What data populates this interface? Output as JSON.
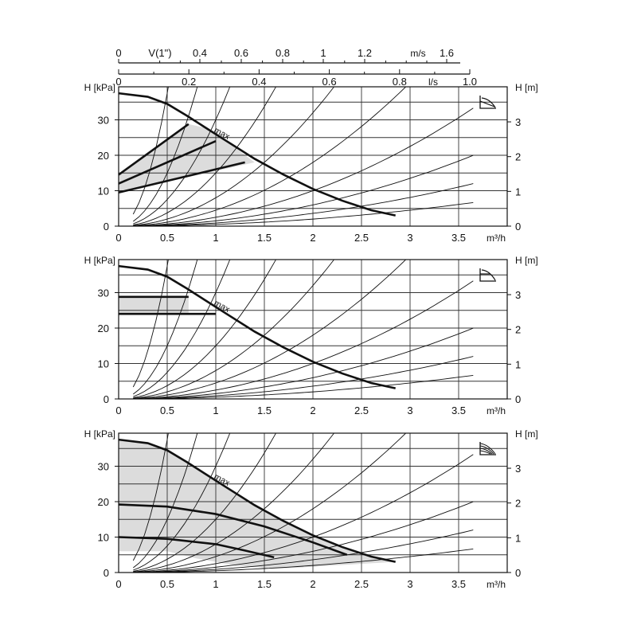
{
  "top_scales": {
    "velocity": {
      "label": "V(1\")",
      "unit": "m/s",
      "ticks": [
        {
          "label": "0",
          "v": 0
        },
        {
          "label": "0.4",
          "v": 0.4
        },
        {
          "label": "0.6",
          "v": 0.6
        },
        {
          "label": "0.8",
          "v": 0.8
        },
        {
          "label": "1",
          "v": 1.0
        },
        {
          "label": "1.2",
          "v": 1.2
        },
        {
          "label": "1.6",
          "v": 1.6
        }
      ]
    },
    "flow_ls": {
      "unit": "l/s",
      "ticks": [
        {
          "label": "0",
          "v": 0
        },
        {
          "label": "0.2",
          "v": 0.2
        },
        {
          "label": "0.4",
          "v": 0.4
        },
        {
          "label": "0.6",
          "v": 0.6
        },
        {
          "label": "0.8",
          "v": 0.8
        },
        {
          "label": "1.0",
          "v": 1.0
        }
      ]
    }
  },
  "chart_data": [
    {
      "type": "line",
      "mode": "proportional-pressure",
      "icon": "proportional-pressure-icon",
      "xlabel": "m³/h",
      "ylabel_left": "H [kPa]",
      "ylabel_right": "H [m]",
      "x_ticks": [
        "0",
        "0.5",
        "1",
        "1.5",
        "2",
        "2.5",
        "3",
        "3.5"
      ],
      "xlim": [
        0,
        3.6
      ],
      "ylim_kpa": [
        0,
        39
      ],
      "y_ticks_left": [
        "0",
        "10",
        "20",
        "30"
      ],
      "y_ticks_right": [
        "0",
        "1",
        "2",
        "3"
      ],
      "max_label": "max",
      "max_curve": [
        [
          0,
          37.5
        ],
        [
          0.3,
          36.5
        ],
        [
          0.5,
          34.5
        ],
        [
          0.7,
          31.2
        ],
        [
          0.9,
          27.7
        ],
        [
          1.1,
          24.2
        ],
        [
          1.4,
          19
        ],
        [
          1.7,
          14.5
        ],
        [
          2.0,
          10.5
        ],
        [
          2.3,
          7.2
        ],
        [
          2.6,
          4.5
        ],
        [
          2.85,
          3
        ]
      ],
      "control_lines": [
        {
          "values": [
            [
              0,
              14.5
            ],
            [
              0.72,
              28.8
            ]
          ]
        },
        {
          "values": [
            [
              0,
              12
            ],
            [
              1.0,
              24
            ]
          ]
        },
        {
          "values": [
            [
              0,
              9.5
            ],
            [
              1.3,
              18
            ]
          ]
        }
      ],
      "shaded_region": [
        [
          0,
          14.5
        ],
        [
          0.72,
          28.8
        ],
        [
          0.9,
          27.7
        ],
        [
          1.1,
          24.2
        ],
        [
          1.4,
          18
        ],
        [
          0,
          9.5
        ]
      ],
      "system_curve_coefficients": [
        150,
        60,
        30,
        15,
        8,
        4.5,
        2.5,
        1.5,
        0.9,
        0.5
      ]
    },
    {
      "type": "line",
      "mode": "constant-pressure",
      "icon": "constant-pressure-icon",
      "xlabel": "m³/h",
      "ylabel_left": "H [kPa]",
      "ylabel_right": "H [m]",
      "x_ticks": [
        "0",
        "0.5",
        "1",
        "1.5",
        "2",
        "2.5",
        "3",
        "3.5"
      ],
      "xlim": [
        0,
        3.6
      ],
      "ylim_kpa": [
        0,
        39
      ],
      "y_ticks_left": [
        "0",
        "10",
        "20",
        "30"
      ],
      "y_ticks_right": [
        "0",
        "1",
        "2",
        "3"
      ],
      "max_label": "max",
      "max_curve": [
        [
          0,
          37.5
        ],
        [
          0.3,
          36.5
        ],
        [
          0.5,
          34.5
        ],
        [
          0.7,
          31.2
        ],
        [
          0.9,
          27.7
        ],
        [
          1.1,
          24.2
        ],
        [
          1.4,
          19
        ],
        [
          1.7,
          14.5
        ],
        [
          2.0,
          10.5
        ],
        [
          2.3,
          7.2
        ],
        [
          2.6,
          4.5
        ],
        [
          2.85,
          3
        ]
      ],
      "control_lines": [
        {
          "values": [
            [
              0,
              28.8
            ],
            [
              0.72,
              28.8
            ]
          ]
        },
        {
          "values": [
            [
              0,
              24
            ],
            [
              1.0,
              24
            ]
          ]
        }
      ],
      "shaded_region": [
        [
          0,
          28.8
        ],
        [
          0.72,
          28.8
        ],
        [
          0.72,
          24
        ],
        [
          0,
          24
        ]
      ],
      "system_curve_coefficients": [
        150,
        60,
        30,
        15,
        8,
        4.5,
        2.5,
        1.5,
        0.9,
        0.5
      ]
    },
    {
      "type": "line",
      "mode": "constant-speed",
      "icon": "constant-speed-icon",
      "xlabel": "m³/h",
      "ylabel_left": "H [kPa]",
      "ylabel_right": "H [m]",
      "x_ticks": [
        "0",
        "0.5",
        "1",
        "1.5",
        "2",
        "2.5",
        "3",
        "3.5"
      ],
      "xlim": [
        0,
        3.6
      ],
      "ylim_kpa": [
        0,
        39
      ],
      "y_ticks_left": [
        "0",
        "10",
        "20",
        "30"
      ],
      "y_ticks_right": [
        "0",
        "1",
        "2",
        "3"
      ],
      "max_label": "max",
      "max_curve": [
        [
          0,
          37.5
        ],
        [
          0.3,
          36.5
        ],
        [
          0.5,
          34.5
        ],
        [
          0.7,
          31.2
        ],
        [
          0.9,
          27.7
        ],
        [
          1.1,
          24.2
        ],
        [
          1.4,
          19
        ],
        [
          1.7,
          14.5
        ],
        [
          2.0,
          10.5
        ],
        [
          2.3,
          7.2
        ],
        [
          2.6,
          4.5
        ],
        [
          2.85,
          3
        ]
      ],
      "control_lines": [
        {
          "values": [
            [
              0,
              19.2
            ],
            [
              0.5,
              18.6
            ],
            [
              1.0,
              16.5
            ],
            [
              1.5,
              13
            ],
            [
              2.0,
              8.5
            ],
            [
              2.35,
              5
            ]
          ]
        },
        {
          "values": [
            [
              0,
              10
            ],
            [
              0.5,
              9.5
            ],
            [
              1.0,
              8
            ],
            [
              1.3,
              6.2
            ],
            [
              1.6,
              4.3
            ]
          ]
        }
      ],
      "shaded_region": [
        [
          0,
          37.5
        ],
        [
          0.3,
          36.5
        ],
        [
          0.5,
          34.5
        ],
        [
          0.7,
          31.2
        ],
        [
          0.9,
          27.7
        ],
        [
          1.1,
          24.2
        ],
        [
          1.4,
          19
        ],
        [
          1.7,
          14.5
        ],
        [
          2.0,
          10.5
        ],
        [
          2.3,
          7.2
        ],
        [
          2.6,
          4.5
        ],
        [
          2.85,
          3
        ],
        [
          1.6,
          1
        ],
        [
          1.2,
          2
        ],
        [
          0.8,
          4
        ],
        [
          0.5,
          6
        ],
        [
          0,
          6
        ]
      ],
      "system_curve_coefficients": [
        150,
        60,
        30,
        15,
        8,
        4.5,
        2.5,
        1.5,
        0.9,
        0.5
      ]
    }
  ]
}
